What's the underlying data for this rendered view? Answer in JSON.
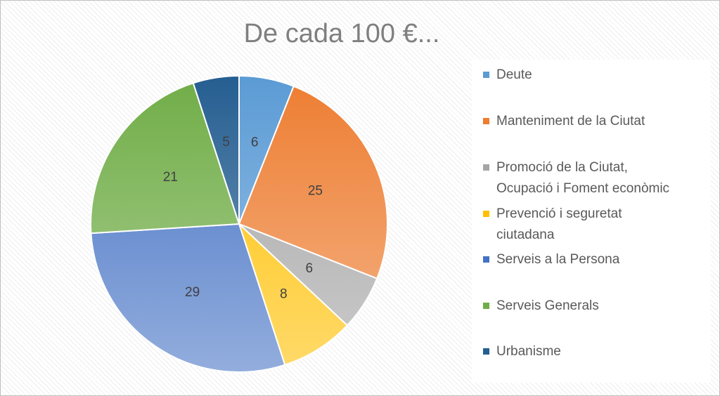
{
  "chart_data": {
    "type": "pie",
    "title": "De cada 100 €...",
    "categories": [
      "Deute",
      "Manteniment de la Ciutat",
      "Promoció de la Ciutat,\nOcupació i Foment econòmic",
      "Prevenció i seguretat\nciutadana",
      "Serveis a la Persona",
      "Serveis Generals",
      "Urbanisme"
    ],
    "values": [
      6,
      25,
      6,
      8,
      29,
      21,
      5
    ],
    "colors": [
      "#5b9bd5",
      "#ed7d31",
      "#a5a5a5",
      "#ffc000",
      "#4472c4",
      "#70ad47",
      "#255e91"
    ],
    "data_labels": true,
    "legend_position": "right"
  }
}
